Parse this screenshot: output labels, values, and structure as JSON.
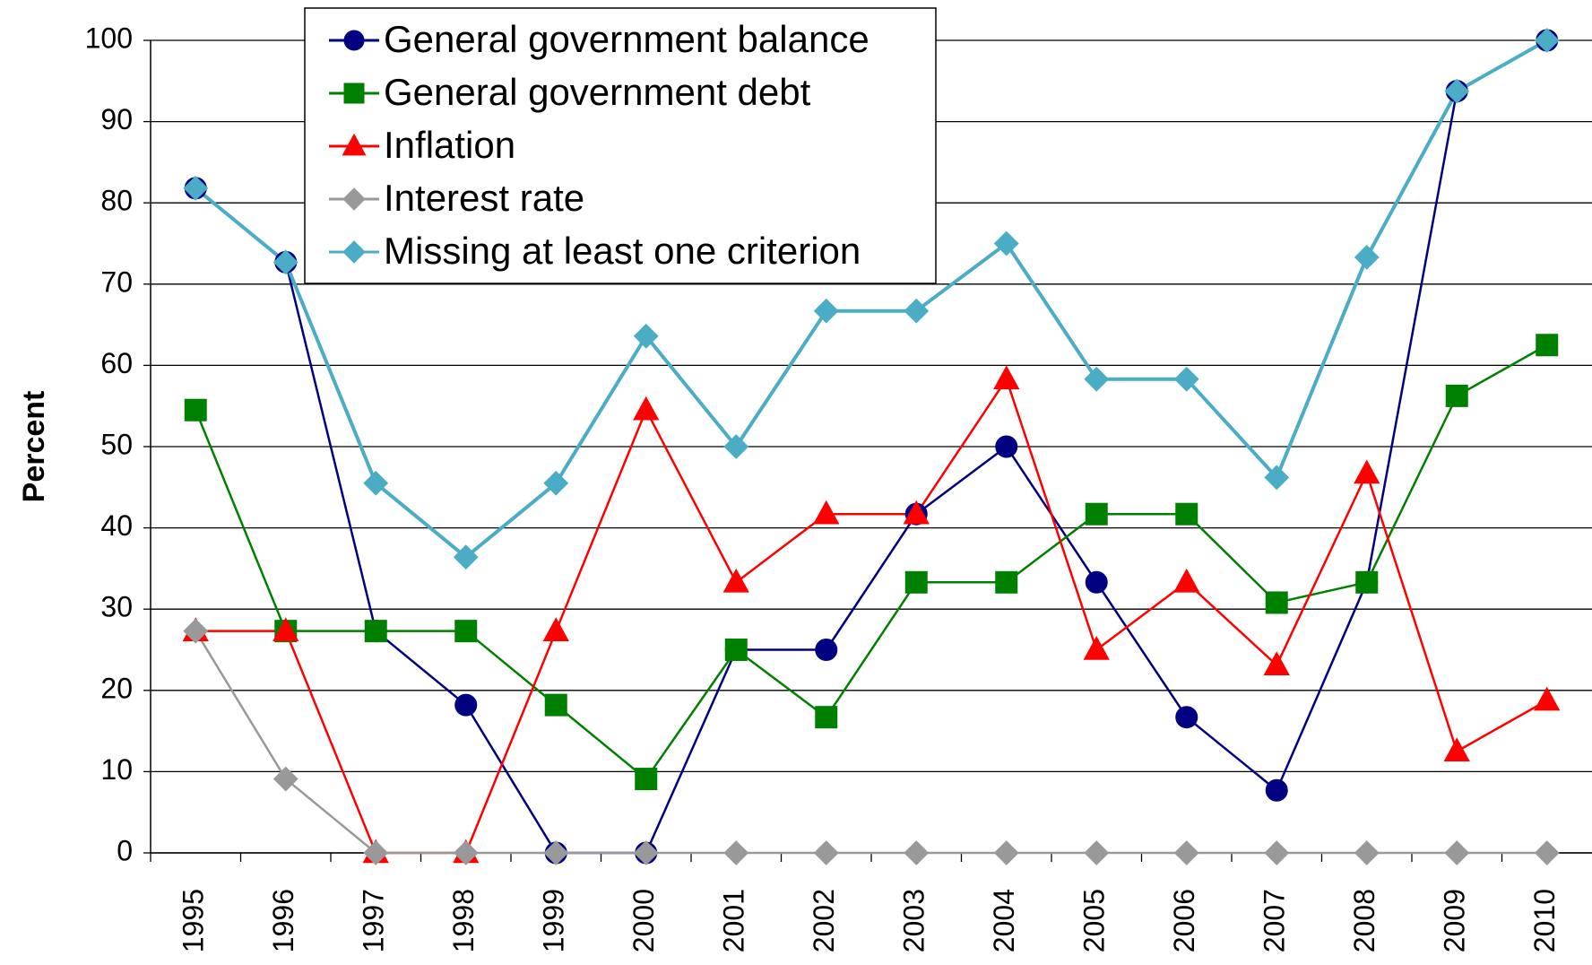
{
  "chart_data": {
    "type": "line",
    "ylabel": "Percent",
    "categories": [
      "1995",
      "1996",
      "1997",
      "1998",
      "1999",
      "2000",
      "2001",
      "2002",
      "2003",
      "2004",
      "2005",
      "2006",
      "2007",
      "2008",
      "2009",
      "2010"
    ],
    "ylim": [
      0,
      100
    ],
    "yticks": [
      0,
      10,
      20,
      30,
      40,
      50,
      60,
      70,
      80,
      90,
      100
    ],
    "grid": true,
    "legend": "top",
    "series": [
      {
        "name": "General government balance",
        "color": "#000080",
        "marker": "circle",
        "values": [
          81.8,
          72.7,
          27.3,
          18.2,
          0,
          0,
          25,
          25,
          41.7,
          50,
          33.3,
          16.7,
          7.7,
          33.3,
          93.75,
          100
        ]
      },
      {
        "name": "General government debt",
        "color": "#008000",
        "marker": "square",
        "values": [
          54.5,
          27.3,
          27.3,
          27.3,
          18.2,
          9.1,
          25,
          16.7,
          33.3,
          33.3,
          41.7,
          41.7,
          30.8,
          33.3,
          56.25,
          62.5
        ]
      },
      {
        "name": "Inflation",
        "color": "#ff0000",
        "marker": "triangle",
        "values": [
          27.3,
          27.3,
          0,
          0,
          27.3,
          54.5,
          33.3,
          41.7,
          41.7,
          58.3,
          25,
          33.3,
          23.1,
          46.7,
          12.5,
          18.75
        ]
      },
      {
        "name": "Interest rate",
        "color": "#999999",
        "marker": "diamond",
        "values": [
          27.3,
          9.1,
          0,
          0,
          0,
          0,
          0,
          0,
          0,
          0,
          0,
          0,
          0,
          0,
          0,
          0
        ]
      },
      {
        "name": "Missing at least one criterion",
        "color": "#4bacc6",
        "marker": "diamond",
        "values": [
          81.8,
          72.7,
          45.5,
          36.4,
          45.5,
          63.6,
          50,
          66.7,
          66.7,
          75,
          58.3,
          58.3,
          46.2,
          73.3,
          93.75,
          100
        ]
      }
    ]
  }
}
